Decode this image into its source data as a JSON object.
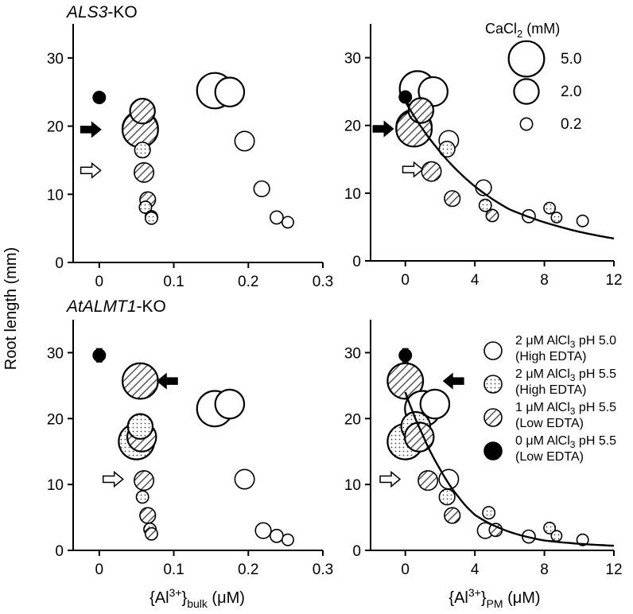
{
  "figure": {
    "y_axis_label": "Root length (mm)",
    "x_label_bulk": {
      "base": "{Al",
      "sup": "3+",
      "close": "}",
      "sub": "bulk",
      "unit": " (μM)"
    },
    "x_label_pm": {
      "base": "{Al",
      "sup": "3+",
      "close": "}",
      "sub": "PM",
      "unit": " (μM)"
    }
  },
  "legend_cacl2": {
    "title_pre": "CaCl",
    "title_sub": "2",
    "title_post": " (mM)",
    "entries": [
      {
        "label": "5.0",
        "cacl2": 5.0
      },
      {
        "label": "2.0",
        "cacl2": 2.0
      },
      {
        "label": "0.2",
        "cacl2": 0.2
      }
    ]
  },
  "legend_treatment": {
    "entries": [
      {
        "style": "open",
        "line1_pre": "2 μM AlCl",
        "line1_sub": "3",
        "line1_post": " pH 5.0",
        "line2": "(High EDTA)"
      },
      {
        "style": "dotted",
        "line1_pre": "2 μM AlCl",
        "line1_sub": "3",
        "line1_post": " pH 5.5",
        "line2": "(High EDTA)"
      },
      {
        "style": "hatched",
        "line1_pre": "1 μM AlCl",
        "line1_sub": "3",
        "line1_post": " pH 5.5",
        "line2": "(Low EDTA)"
      },
      {
        "style": "filled",
        "line1_pre": "0 μM AlCl",
        "line1_sub": "3",
        "line1_post": " pH 5.5",
        "line2": "(Low EDTA)"
      }
    ]
  },
  "chart_data": [
    {
      "type": "scatter",
      "panel": "top-left",
      "title": "ALS3",
      "title_suffix": "-KO",
      "xlabel": "{Al3+}bulk (μM)",
      "ylabel": "Root length (mm)",
      "xlim": [
        -0.035,
        0.3
      ],
      "ylim": [
        0,
        35
      ],
      "xticks": [
        0,
        0.1,
        0.2,
        0.3
      ],
      "xtick_labels": [
        "0",
        "0.1",
        "0.2",
        "0.3"
      ],
      "yticks": [
        0,
        10,
        20,
        30
      ],
      "ytick_labels": [
        "0",
        "10",
        "20",
        "30"
      ],
      "points": [
        {
          "x": 0.0,
          "y": 24.2,
          "cacl2": 0.2,
          "style": "filled"
        },
        {
          "x": 0.058,
          "y": 22.2,
          "cacl2": 2.0,
          "style": "hatched"
        },
        {
          "x": 0.055,
          "y": 19.6,
          "cacl2": 5.0,
          "style": "open"
        },
        {
          "x": 0.055,
          "y": 19.5,
          "cacl2": 5.0,
          "style": "hatched"
        },
        {
          "x": 0.058,
          "y": 16.5,
          "cacl2": 0.5,
          "style": "dotted"
        },
        {
          "x": 0.06,
          "y": 13.2,
          "cacl2": 1.0,
          "style": "hatched"
        },
        {
          "x": 0.065,
          "y": 9.2,
          "cacl2": 0.5,
          "style": "hatched"
        },
        {
          "x": 0.062,
          "y": 8.1,
          "cacl2": 0.2,
          "style": "dotted"
        },
        {
          "x": 0.07,
          "y": 6.7,
          "cacl2": 0.2,
          "style": "hatched"
        },
        {
          "x": 0.07,
          "y": 6.5,
          "cacl2": 0.2,
          "style": "dotted"
        },
        {
          "x": 0.155,
          "y": 25.2,
          "cacl2": 5.0,
          "style": "open"
        },
        {
          "x": 0.175,
          "y": 25.0,
          "cacl2": 3.0,
          "style": "open"
        },
        {
          "x": 0.195,
          "y": 17.8,
          "cacl2": 1.0,
          "style": "open"
        },
        {
          "x": 0.218,
          "y": 10.8,
          "cacl2": 0.5,
          "style": "open"
        },
        {
          "x": 0.238,
          "y": 6.6,
          "cacl2": 0.25,
          "style": "open"
        },
        {
          "x": 0.253,
          "y": 5.9,
          "cacl2": 0.15,
          "style": "open"
        }
      ],
      "arrows": [
        {
          "x": -0.012,
          "y": 19.5,
          "style": "filled",
          "direction": "right"
        },
        {
          "x": -0.012,
          "y": 13.5,
          "style": "open",
          "direction": "right"
        }
      ]
    },
    {
      "type": "scatter",
      "panel": "top-right",
      "xlabel": "",
      "ylabel": "",
      "xlim": [
        -2,
        12
      ],
      "ylim": [
        0,
        35
      ],
      "xticks": [
        0,
        4,
        8,
        12
      ],
      "xtick_labels": [
        "0",
        "4",
        "8",
        "12"
      ],
      "yticks": [
        0,
        10,
        20,
        30
      ],
      "ytick_labels": [
        "0",
        "10",
        "20",
        "30"
      ],
      "points": [
        {
          "x": 0.0,
          "y": 24.2,
          "cacl2": 0.2,
          "style": "filled"
        },
        {
          "x": 0.7,
          "y": 25.4,
          "cacl2": 5.0,
          "style": "open"
        },
        {
          "x": 1.6,
          "y": 25.0,
          "cacl2": 3.0,
          "style": "open"
        },
        {
          "x": 0.9,
          "y": 22.2,
          "cacl2": 2.0,
          "style": "hatched"
        },
        {
          "x": 0.5,
          "y": 19.7,
          "cacl2": 5.0,
          "style": "open"
        },
        {
          "x": 0.5,
          "y": 19.5,
          "cacl2": 5.0,
          "style": "hatched"
        },
        {
          "x": 1.5,
          "y": 13.2,
          "cacl2": 1.0,
          "style": "hatched"
        },
        {
          "x": 2.5,
          "y": 17.8,
          "cacl2": 1.0,
          "style": "open"
        },
        {
          "x": 2.4,
          "y": 16.5,
          "cacl2": 0.5,
          "style": "dotted"
        },
        {
          "x": 2.7,
          "y": 9.2,
          "cacl2": 0.5,
          "style": "hatched"
        },
        {
          "x": 4.5,
          "y": 10.8,
          "cacl2": 0.5,
          "style": "open"
        },
        {
          "x": 4.6,
          "y": 8.2,
          "cacl2": 0.2,
          "style": "dotted"
        },
        {
          "x": 5.0,
          "y": 6.7,
          "cacl2": 0.2,
          "style": "hatched"
        },
        {
          "x": 7.1,
          "y": 6.6,
          "cacl2": 0.25,
          "style": "open"
        },
        {
          "x": 8.3,
          "y": 7.8,
          "cacl2": 0.15,
          "style": "dotted"
        },
        {
          "x": 8.7,
          "y": 6.4,
          "cacl2": 0.1,
          "style": "dotted"
        },
        {
          "x": 10.2,
          "y": 5.9,
          "cacl2": 0.15,
          "style": "open"
        }
      ],
      "fit_curve": {
        "x": [
          0,
          2,
          4,
          6,
          8,
          10,
          12
        ],
        "y": [
          23.5,
          16.1,
          11.0,
          7.6,
          5.7,
          4.3,
          3.3
        ]
      },
      "arrows": [
        {
          "x": -1.3,
          "y": 19.5,
          "style": "filled",
          "direction": "right"
        },
        {
          "x": 0.4,
          "y": 13.5,
          "style": "open",
          "direction": "right"
        }
      ]
    },
    {
      "type": "scatter",
      "panel": "bottom-left",
      "title": "AtALMT1",
      "title_suffix": "-KO",
      "xlabel": "{Al3+}bulk (μM)",
      "ylabel": "Root length (mm)",
      "xlim": [
        -0.035,
        0.3
      ],
      "ylim": [
        0,
        35
      ],
      "xticks": [
        0,
        0.1,
        0.2,
        0.3
      ],
      "xtick_labels": [
        "0",
        "0.1",
        "0.2",
        "0.3"
      ],
      "yticks": [
        0,
        10,
        20,
        30
      ],
      "ytick_labels": [
        "0",
        "10",
        "20",
        "30"
      ],
      "points": [
        {
          "x": 0.0,
          "y": 29.6,
          "cacl2": 0.2,
          "style": "filled",
          "error": 1.0
        },
        {
          "x": 0.055,
          "y": 25.7,
          "cacl2": 5.0,
          "style": "hatched"
        },
        {
          "x": 0.055,
          "y": 18.8,
          "cacl2": 2.0,
          "style": "dotted"
        },
        {
          "x": 0.05,
          "y": 16.5,
          "cacl2": 5.0,
          "style": "dotted"
        },
        {
          "x": 0.057,
          "y": 17.2,
          "cacl2": 3.0,
          "style": "hatched"
        },
        {
          "x": 0.06,
          "y": 10.6,
          "cacl2": 1.0,
          "style": "hatched"
        },
        {
          "x": 0.058,
          "y": 8.1,
          "cacl2": 0.2,
          "style": "dotted"
        },
        {
          "x": 0.065,
          "y": 5.3,
          "cacl2": 0.5,
          "style": "hatched"
        },
        {
          "x": 0.068,
          "y": 3.2,
          "cacl2": 0.2,
          "style": "dotted"
        },
        {
          "x": 0.07,
          "y": 2.5,
          "cacl2": 0.2,
          "style": "hatched"
        },
        {
          "x": 0.155,
          "y": 21.5,
          "cacl2": 5.0,
          "style": "open"
        },
        {
          "x": 0.175,
          "y": 22.2,
          "cacl2": 3.0,
          "style": "open"
        },
        {
          "x": 0.195,
          "y": 10.8,
          "cacl2": 1.0,
          "style": "open"
        },
        {
          "x": 0.22,
          "y": 3.0,
          "cacl2": 0.5,
          "style": "open"
        },
        {
          "x": 0.238,
          "y": 2.2,
          "cacl2": 0.25,
          "style": "open"
        },
        {
          "x": 0.253,
          "y": 1.6,
          "cacl2": 0.15,
          "style": "open"
        }
      ],
      "arrows": [
        {
          "x": 0.092,
          "y": 25.7,
          "style": "filled",
          "direction": "left"
        },
        {
          "x": 0.018,
          "y": 10.8,
          "style": "open",
          "direction": "right"
        }
      ]
    },
    {
      "type": "scatter",
      "panel": "bottom-right",
      "xlabel": "{Al3+}PM (μM)",
      "ylabel": "",
      "xlim": [
        -2,
        12
      ],
      "ylim": [
        0,
        35
      ],
      "xticks": [
        0,
        4,
        8,
        12
      ],
      "xtick_labels": [
        "0",
        "4",
        "8",
        "12"
      ],
      "yticks": [
        0,
        10,
        20,
        30
      ],
      "ytick_labels": [
        "0",
        "10",
        "20",
        "30"
      ],
      "points": [
        {
          "x": 0.0,
          "y": 29.6,
          "cacl2": 0.2,
          "style": "filled",
          "error": 1.0
        },
        {
          "x": 0.0,
          "y": 25.7,
          "cacl2": 5.0,
          "style": "hatched"
        },
        {
          "x": 1.0,
          "y": 21.5,
          "cacl2": 5.0,
          "style": "open"
        },
        {
          "x": 1.7,
          "y": 22.2,
          "cacl2": 3.0,
          "style": "open"
        },
        {
          "x": 0.6,
          "y": 18.8,
          "cacl2": 3.0,
          "style": "dotted"
        },
        {
          "x": 0.0,
          "y": 16.5,
          "cacl2": 5.0,
          "style": "dotted"
        },
        {
          "x": 0.8,
          "y": 17.2,
          "cacl2": 3.0,
          "style": "hatched"
        },
        {
          "x": 1.3,
          "y": 10.6,
          "cacl2": 1.0,
          "style": "hatched"
        },
        {
          "x": 2.5,
          "y": 10.8,
          "cacl2": 1.0,
          "style": "open"
        },
        {
          "x": 2.4,
          "y": 8.1,
          "cacl2": 0.5,
          "style": "dotted"
        },
        {
          "x": 2.7,
          "y": 5.3,
          "cacl2": 0.5,
          "style": "hatched"
        },
        {
          "x": 4.6,
          "y": 3.0,
          "cacl2": 0.5,
          "style": "open"
        },
        {
          "x": 4.8,
          "y": 5.7,
          "cacl2": 0.2,
          "style": "dotted"
        },
        {
          "x": 5.2,
          "y": 3.1,
          "cacl2": 0.25,
          "style": "hatched"
        },
        {
          "x": 7.1,
          "y": 2.1,
          "cacl2": 0.25,
          "style": "open"
        },
        {
          "x": 8.3,
          "y": 3.4,
          "cacl2": 0.15,
          "style": "dotted"
        },
        {
          "x": 8.7,
          "y": 2.2,
          "cacl2": 0.1,
          "style": "dotted"
        },
        {
          "x": 10.2,
          "y": 1.6,
          "cacl2": 0.15,
          "style": "open"
        }
      ],
      "fit_curve": {
        "x": [
          0,
          1,
          2,
          3,
          4,
          6,
          8,
          10,
          12
        ],
        "y": [
          24.0,
          17.5,
          12.3,
          8.3,
          5.4,
          2.8,
          1.5,
          1.0,
          0.7
        ]
      },
      "arrows": [
        {
          "x": 2.8,
          "y": 25.7,
          "style": "filled",
          "direction": "left"
        },
        {
          "x": -0.9,
          "y": 10.8,
          "style": "open",
          "direction": "right"
        }
      ]
    }
  ]
}
